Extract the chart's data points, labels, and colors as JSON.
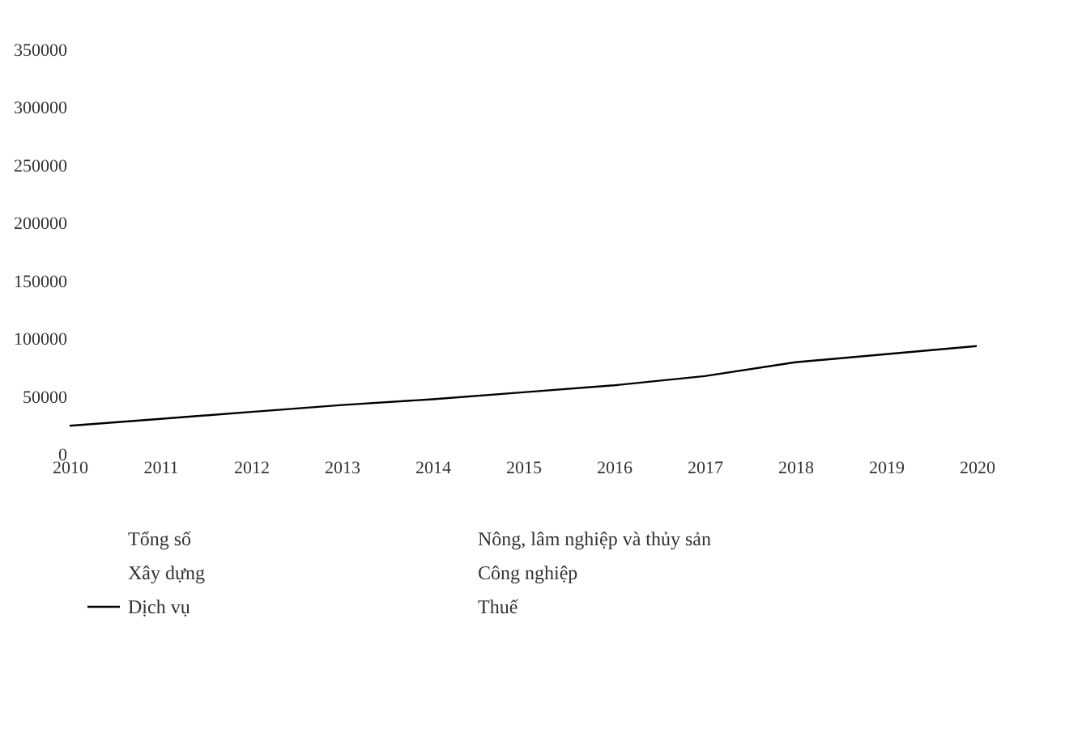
{
  "chart_data": {
    "type": "line",
    "categories": [
      "2010",
      "2011",
      "2012",
      "2013",
      "2014",
      "2015",
      "2016",
      "2017",
      "2018",
      "2019",
      "2020"
    ],
    "series": [
      {
        "name": "Tổng số",
        "values": [
          null,
          null,
          null,
          null,
          null,
          null,
          null,
          null,
          null,
          null,
          null
        ]
      },
      {
        "name": "Nông, lâm nghiệp và thủy sản",
        "values": [
          null,
          null,
          null,
          null,
          null,
          null,
          null,
          null,
          null,
          null,
          null
        ]
      },
      {
        "name": "Xây dựng",
        "values": [
          null,
          null,
          null,
          null,
          null,
          null,
          null,
          null,
          null,
          null,
          null
        ]
      },
      {
        "name": "Công nghiệp",
        "values": [
          null,
          null,
          null,
          null,
          null,
          null,
          null,
          null,
          null,
          null,
          null
        ]
      },
      {
        "name": "Dịch vụ",
        "color": "#000000",
        "values": [
          25000,
          31000,
          37000,
          43000,
          48000,
          54000,
          60000,
          68000,
          80000,
          87000,
          94000
        ]
      },
      {
        "name": "Thuế",
        "values": [
          null,
          null,
          null,
          null,
          null,
          null,
          null,
          null,
          null,
          null,
          null
        ]
      }
    ],
    "ylim": [
      0,
      350000
    ],
    "yticks": [
      0,
      50000,
      100000,
      150000,
      200000,
      250000,
      300000,
      350000
    ],
    "legend": "bottom",
    "line_style": "solid"
  }
}
